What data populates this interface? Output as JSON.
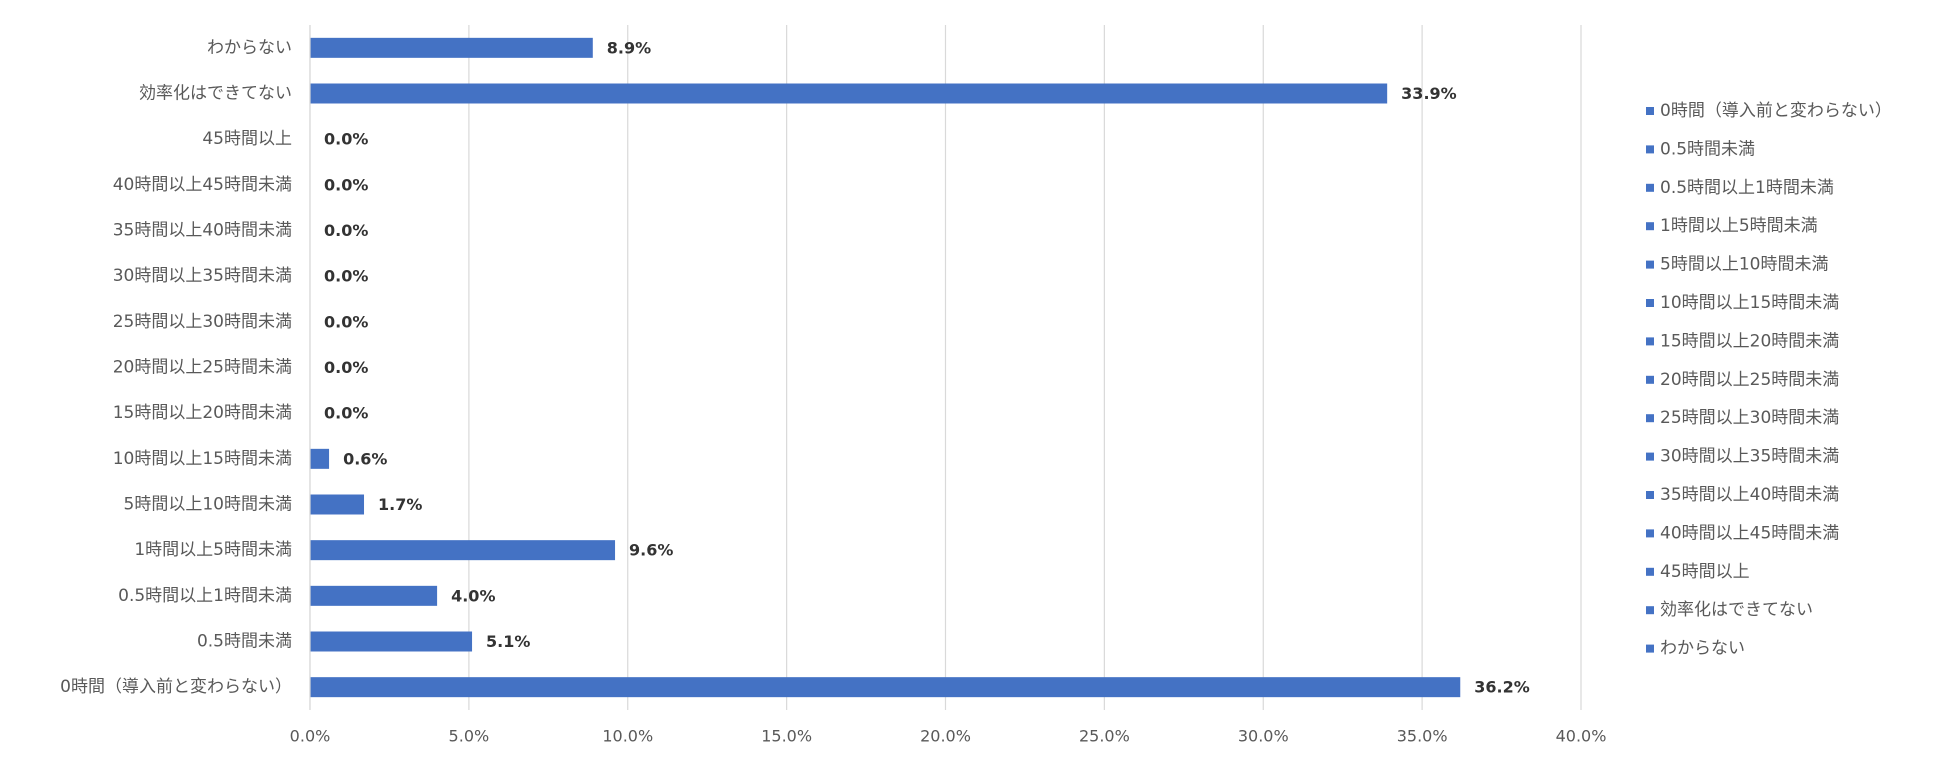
{
  "chart_data": {
    "type": "bar",
    "orientation": "horizontal",
    "categories": [
      "0時間（導入前と変わらない）",
      "0.5時間未満",
      "0.5時間以上1時間未満",
      "1時間以上5時間未満",
      "5時間以上10時間未満",
      "10時間以上15時間未満",
      "15時間以上20時間未満",
      "20時間以上25時間未満",
      "25時間以上30時間未満",
      "30時間以上35時間未満",
      "35時間以上40時間未満",
      "40時間以上45時間未満",
      "45時間以上",
      "効率化はできてない",
      "わからない"
    ],
    "values": [
      36.2,
      5.1,
      4.0,
      9.6,
      1.7,
      0.6,
      0,
      0,
      0,
      0,
      0,
      0,
      0,
      33.9,
      8.9
    ],
    "value_labels": [
      "36.2%",
      "5.1%",
      "4.0%",
      "9.6%",
      "1.7%",
      "0.6%",
      "0.0%",
      "0.0%",
      "0.0%",
      "0.0%",
      "0.0%",
      "0.0%",
      "0.0%",
      "33.9%",
      "8.9%"
    ],
    "color": "#4472c4",
    "xlim": [
      0,
      40
    ],
    "xticks": [
      {
        "value": 0,
        "label": "0.0%"
      },
      {
        "value": 5,
        "label": "5.0%"
      },
      {
        "value": 10,
        "label": "10.0%"
      },
      {
        "value": 15,
        "label": "15.0%"
      },
      {
        "value": 20,
        "label": "20.0%"
      },
      {
        "value": 25,
        "label": "25.0%"
      },
      {
        "value": 30,
        "label": "30.0%"
      },
      {
        "value": 35,
        "label": "35.0%"
      },
      {
        "value": 40,
        "label": "40.0%"
      }
    ],
    "grid": true,
    "legend": "right"
  }
}
